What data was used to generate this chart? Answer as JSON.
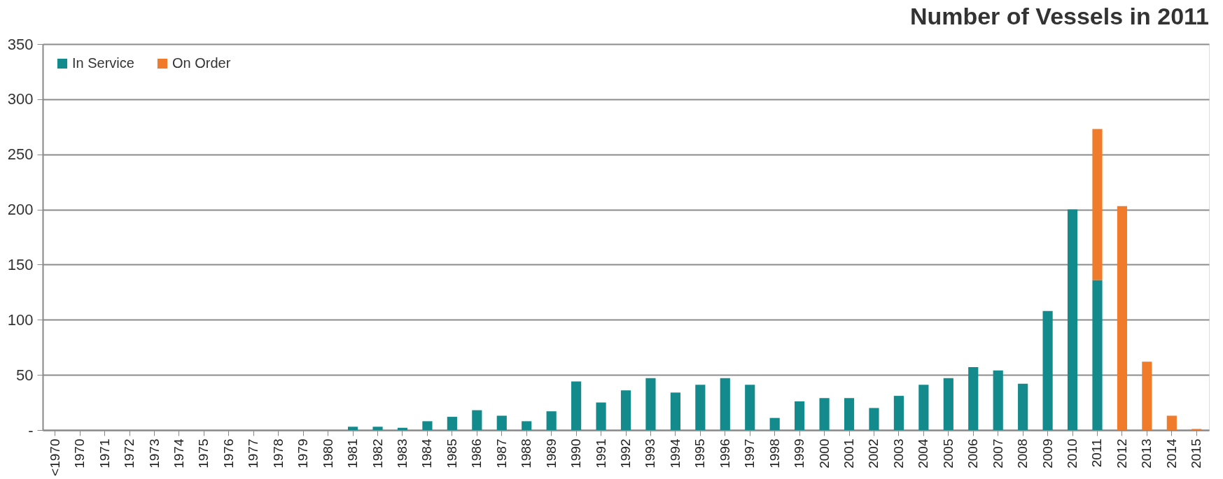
{
  "chart_data": {
    "type": "bar",
    "title": "Number of Vessels in 2011",
    "stacked": true,
    "categories": [
      "<1970",
      "1970",
      "1971",
      "1972",
      "1973",
      "1974",
      "1975",
      "1976",
      "1977",
      "1978",
      "1979",
      "1980",
      "1981",
      "1982",
      "1983",
      "1984",
      "1985",
      "1986",
      "1987",
      "1988",
      "1989",
      "1990",
      "1991",
      "1992",
      "1993",
      "1994",
      "1995",
      "1996",
      "1997",
      "1998",
      "1999",
      "2000",
      "2001",
      "2002",
      "2003",
      "2004",
      "2005",
      "2006",
      "2007",
      "2008",
      "2009",
      "2010",
      "2011",
      "2012",
      "2013",
      "2014",
      "2015"
    ],
    "series": [
      {
        "name": "In Service",
        "color": "#138a8c",
        "values": [
          0,
          0,
          0,
          0,
          0,
          0,
          0,
          0,
          0,
          0,
          0,
          0,
          3,
          3,
          2,
          8,
          12,
          18,
          13,
          8,
          17,
          44,
          25,
          36,
          47,
          34,
          41,
          47,
          41,
          11,
          26,
          29,
          29,
          20,
          31,
          41,
          47,
          57,
          54,
          42,
          108,
          200,
          136,
          0,
          0,
          0,
          0
        ]
      },
      {
        "name": "On Order",
        "color": "#f07b2a",
        "values": [
          0,
          0,
          0,
          0,
          0,
          0,
          0,
          0,
          0,
          0,
          0,
          0,
          0,
          0,
          0,
          0,
          0,
          0,
          0,
          0,
          0,
          0,
          0,
          0,
          0,
          0,
          0,
          0,
          0,
          0,
          0,
          0,
          0,
          0,
          0,
          0,
          0,
          0,
          0,
          0,
          0,
          0,
          137,
          203,
          62,
          13,
          1
        ]
      }
    ],
    "ylim": [
      0,
      350
    ],
    "yticks": [
      {
        "value": 0,
        "label": "-"
      },
      50,
      100,
      150,
      200,
      250,
      300,
      350
    ],
    "grid": "y",
    "legend": "top left"
  }
}
